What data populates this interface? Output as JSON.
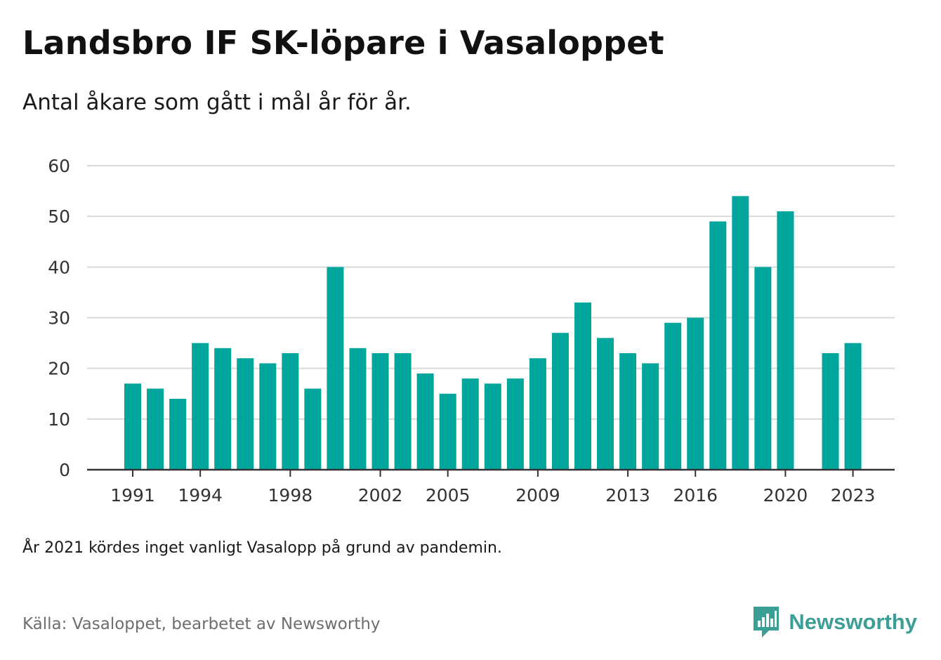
{
  "header": {
    "title": "Landsbro IF SK-löpare i Vasaloppet",
    "subtitle": "Antal åkare som gått i mål år för år."
  },
  "footer": {
    "note": "År 2021 kördes inget vanligt Vasalopp på grund av pandemin.",
    "source": "Källa: Vasaloppet, bearbetet av Newsworthy",
    "brand": "Newsworthy",
    "brand_icon": "bar-chart-speech-bubble-icon"
  },
  "colors": {
    "bar": "#00a69c",
    "grid": "#d9d9d9",
    "axis": "#333333",
    "brand": "#3c9f95"
  },
  "chart_data": {
    "type": "bar",
    "title": "Landsbro IF SK-löpare i Vasaloppet",
    "subtitle": "Antal åkare som gått i mål år för år.",
    "xlabel": "",
    "ylabel": "",
    "ylim": [
      0,
      60
    ],
    "yticks": [
      0,
      10,
      20,
      30,
      40,
      50,
      60
    ],
    "xticks": [
      1991,
      1994,
      1998,
      2002,
      2005,
      2009,
      2013,
      2016,
      2020,
      2023
    ],
    "grid": true,
    "categories": [
      1991,
      1992,
      1993,
      1994,
      1995,
      1996,
      1997,
      1998,
      1999,
      2000,
      2001,
      2002,
      2003,
      2004,
      2005,
      2006,
      2007,
      2008,
      2009,
      2010,
      2011,
      2012,
      2013,
      2014,
      2015,
      2016,
      2017,
      2018,
      2019,
      2020,
      2021,
      2022,
      2023
    ],
    "values": [
      17,
      16,
      14,
      25,
      24,
      22,
      21,
      23,
      16,
      40,
      24,
      23,
      23,
      19,
      15,
      18,
      17,
      18,
      22,
      27,
      33,
      26,
      23,
      21,
      29,
      30,
      49,
      54,
      40,
      51,
      null,
      23,
      25
    ]
  }
}
